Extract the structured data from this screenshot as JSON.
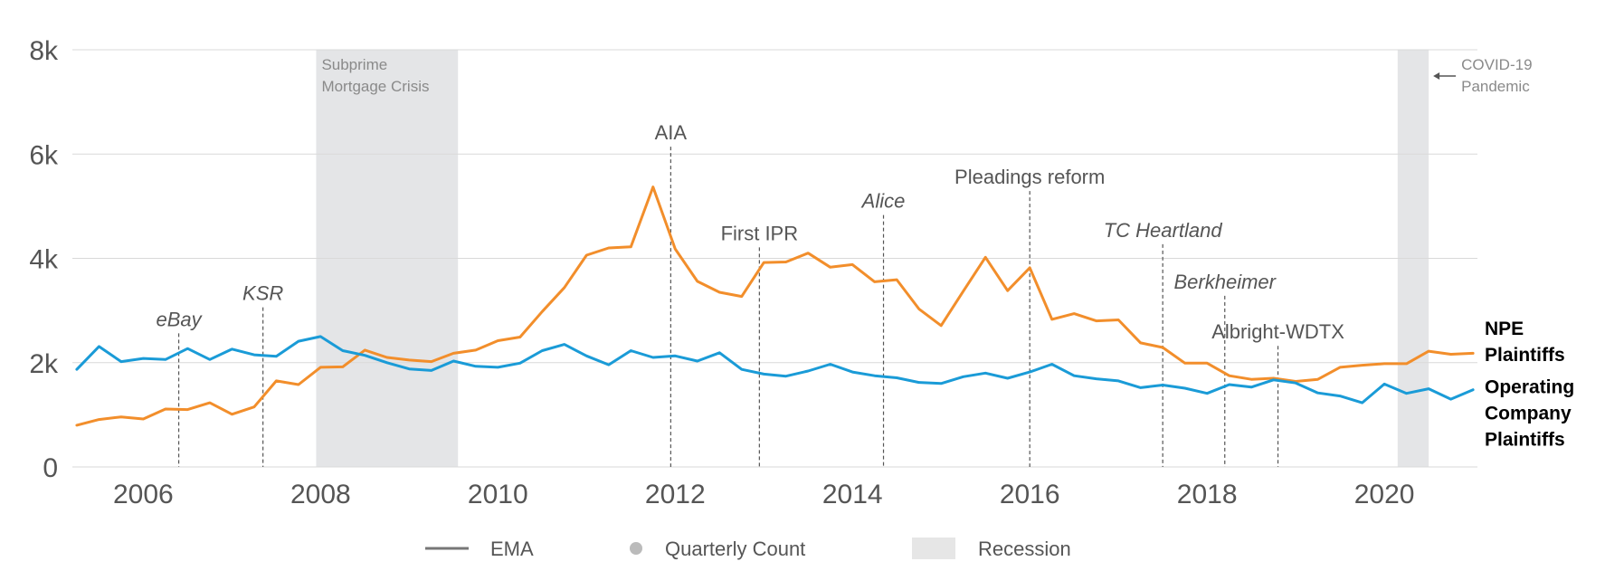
{
  "chart_data": {
    "type": "line",
    "ylim": [
      0,
      8000
    ],
    "xlim": [
      2005.2,
      2021.05
    ],
    "grid": true,
    "y_ticks": [
      {
        "value": 0,
        "label": "0"
      },
      {
        "value": 2000,
        "label": "2k"
      },
      {
        "value": 4000,
        "label": "4k"
      },
      {
        "value": 6000,
        "label": "6k"
      },
      {
        "value": 8000,
        "label": "8k"
      }
    ],
    "x_ticks": [
      {
        "value": 2006,
        "label": "2006"
      },
      {
        "value": 2008,
        "label": "2008"
      },
      {
        "value": 2010,
        "label": "2010"
      },
      {
        "value": 2012,
        "label": "2012"
      },
      {
        "value": 2014,
        "label": "2014"
      },
      {
        "value": 2016,
        "label": "2016"
      },
      {
        "value": 2018,
        "label": "2018"
      },
      {
        "value": 2020,
        "label": "2020"
      }
    ],
    "x": [
      2005.25,
      2005.5,
      2005.75,
      2006.0,
      2006.25,
      2006.5,
      2006.75,
      2007.0,
      2007.25,
      2007.5,
      2007.75,
      2008.0,
      2008.25,
      2008.5,
      2008.75,
      2009.0,
      2009.25,
      2009.5,
      2009.75,
      2010.0,
      2010.25,
      2010.5,
      2010.75,
      2011.0,
      2011.25,
      2011.5,
      2011.75,
      2012.0,
      2012.25,
      2012.5,
      2012.75,
      2013.0,
      2013.25,
      2013.5,
      2013.75,
      2014.0,
      2014.25,
      2014.5,
      2014.75,
      2015.0,
      2015.25,
      2015.5,
      2015.75,
      2016.0,
      2016.25,
      2016.5,
      2016.75,
      2017.0,
      2017.25,
      2017.5,
      2017.75,
      2018.0,
      2018.25,
      2018.5,
      2018.75,
      2019.0,
      2019.25,
      2019.5,
      2019.75,
      2020.0,
      2020.25,
      2020.5,
      2020.75,
      2021.0
    ],
    "series": [
      {
        "name": "NPE Plaintiffs",
        "color": "#f28e2b",
        "values": [
          800,
          910,
          960,
          920,
          1110,
          1100,
          1230,
          1010,
          1150,
          1650,
          1580,
          1910,
          1920,
          2240,
          2100,
          2050,
          2020,
          2180,
          2240,
          2420,
          2490,
          2980,
          3440,
          4060,
          4200,
          4220,
          5370,
          4180,
          3560,
          3350,
          3270,
          3920,
          3930,
          4100,
          3830,
          3880,
          3550,
          3590,
          3030,
          2710,
          3370,
          4020,
          3380,
          3820,
          2830,
          2940,
          2800,
          2820,
          2380,
          2290,
          1990,
          1990,
          1750,
          1680,
          1700,
          1640,
          1680,
          1910,
          1950,
          1980,
          1980,
          2220,
          2160,
          2180
        ]
      },
      {
        "name": "Operating Company Plaintiffs",
        "color": "#1a9bd7",
        "values": [
          1870,
          2310,
          2020,
          2080,
          2060,
          2270,
          2060,
          2260,
          2150,
          2120,
          2410,
          2500,
          2230,
          2140,
          2000,
          1880,
          1850,
          2030,
          1930,
          1910,
          1990,
          2230,
          2350,
          2130,
          1960,
          2230,
          2100,
          2130,
          2030,
          2190,
          1870,
          1780,
          1740,
          1840,
          1970,
          1820,
          1750,
          1710,
          1620,
          1600,
          1730,
          1800,
          1700,
          1820,
          1970,
          1750,
          1690,
          1650,
          1520,
          1570,
          1510,
          1410,
          1580,
          1530,
          1670,
          1610,
          1420,
          1360,
          1230,
          1590,
          1410,
          1500,
          1300,
          1480
        ]
      }
    ],
    "recessions": [
      {
        "start": 2007.95,
        "end": 2009.55,
        "label_lines": [
          "Subprime",
          "Mortgage Crisis"
        ]
      },
      {
        "start": 2020.15,
        "end": 2020.5,
        "label_lines": [
          "COVID-19",
          "Pandemic"
        ]
      }
    ],
    "events": [
      {
        "x": 2006.4,
        "label": "eBay",
        "italic": true,
        "label_y": 2700
      },
      {
        "x": 2007.35,
        "label": "KSR",
        "italic": true,
        "label_y": 3200
      },
      {
        "x": 2011.95,
        "label": "AIA",
        "italic": false,
        "label_y": 6280
      },
      {
        "x": 2012.95,
        "label": "First IPR",
        "italic": false,
        "label_y": 4350
      },
      {
        "x": 2014.35,
        "label": "Alice",
        "italic": true,
        "label_y": 4970
      },
      {
        "x": 2016.0,
        "label": "Pleadings reform",
        "italic": false,
        "label_y": 5430
      },
      {
        "x": 2017.5,
        "label": "TC Heartland",
        "italic": true,
        "label_y": 4410
      },
      {
        "x": 2018.2,
        "label": "Berkheimer",
        "italic": true,
        "label_y": 3420
      },
      {
        "x": 2018.8,
        "label": "Albright-WDTX",
        "italic": false,
        "label_y": 2460
      }
    ],
    "end_labels": [
      {
        "series": 0,
        "lines": [
          "NPE",
          "Plaintiffs"
        ]
      },
      {
        "series": 1,
        "lines": [
          "Operating",
          "Company",
          "Plaintiffs"
        ]
      }
    ],
    "legend": {
      "position": "bottom",
      "items": [
        {
          "kind": "line",
          "label": "EMA",
          "color": "#777777"
        },
        {
          "kind": "dot",
          "label": "Quarterly Count",
          "color": "#bbbbbb"
        },
        {
          "kind": "box",
          "label": "Recession",
          "color": "#e6e6e6"
        }
      ]
    }
  }
}
